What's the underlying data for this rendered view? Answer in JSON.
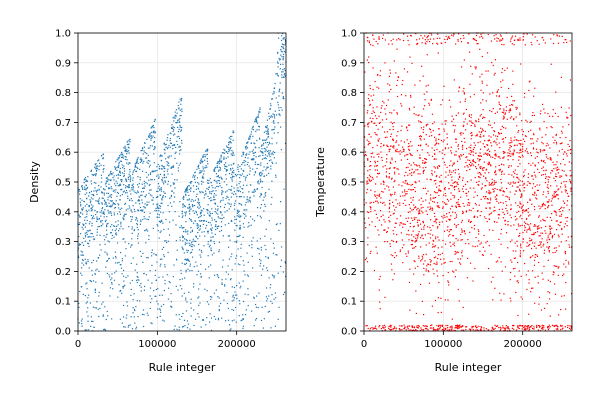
{
  "chart_data": [
    {
      "type": "scatter",
      "xlabel": "Rule integer",
      "ylabel": "Density",
      "xlim": [
        0,
        262144
      ],
      "ylim": [
        0,
        1.0
      ],
      "xticks": [
        0,
        100000,
        200000
      ],
      "xtick_labels": [
        "0",
        "100000",
        "200000"
      ],
      "yticks": [
        0.0,
        0.1,
        0.2,
        0.3,
        0.4,
        0.5,
        0.6,
        0.7,
        0.8,
        0.9,
        1.0
      ],
      "ytick_labels": [
        "0.0",
        "0.1",
        "0.2",
        "0.3",
        "0.4",
        "0.5",
        "0.6",
        "0.7",
        "0.8",
        "0.9",
        "1.0"
      ],
      "grid": true,
      "color": "#1f77b4",
      "points_count": 2600,
      "envelope": {
        "segment_width": 32768,
        "segments": [
          {
            "x0": 0,
            "upper_start": 0.48,
            "upper_end": 0.6
          },
          {
            "x0": 32768,
            "upper_start": 0.5,
            "upper_end": 0.65
          },
          {
            "x0": 65536,
            "upper_start": 0.52,
            "upper_end": 0.72
          },
          {
            "x0": 98304,
            "upper_start": 0.55,
            "upper_end": 0.8
          },
          {
            "x0": 131072,
            "upper_start": 0.45,
            "upper_end": 0.62
          },
          {
            "x0": 163840,
            "upper_start": 0.5,
            "upper_end": 0.68
          },
          {
            "x0": 196608,
            "upper_start": 0.52,
            "upper_end": 0.75
          },
          {
            "x0": 229376,
            "upper_start": 0.6,
            "upper_end": 1.0
          }
        ]
      }
    },
    {
      "type": "scatter",
      "xlabel": "Rule integer",
      "ylabel": "Temperature",
      "xlim": [
        0,
        262144
      ],
      "ylim": [
        0,
        1.0
      ],
      "xticks": [
        0,
        100000,
        200000
      ],
      "xtick_labels": [
        "0",
        "100000",
        "200000"
      ],
      "yticks": [
        0.0,
        0.1,
        0.2,
        0.3,
        0.4,
        0.5,
        0.6,
        0.7,
        0.8,
        0.9,
        1.0
      ],
      "ytick_labels": [
        "0.0",
        "0.1",
        "0.2",
        "0.3",
        "0.4",
        "0.5",
        "0.6",
        "0.7",
        "0.8",
        "0.9",
        "1.0"
      ],
      "grid": true,
      "color": "#ff0000",
      "points_count": 2800,
      "bands": [
        {
          "x0": 0,
          "x1": 55000,
          "center": 0.55
        },
        {
          "x0": 55000,
          "x1": 125000,
          "center": 0.45
        },
        {
          "x0": 125000,
          "x1": 190000,
          "center": 0.55
        },
        {
          "x0": 190000,
          "x1": 262144,
          "center": 0.45
        }
      ]
    }
  ]
}
